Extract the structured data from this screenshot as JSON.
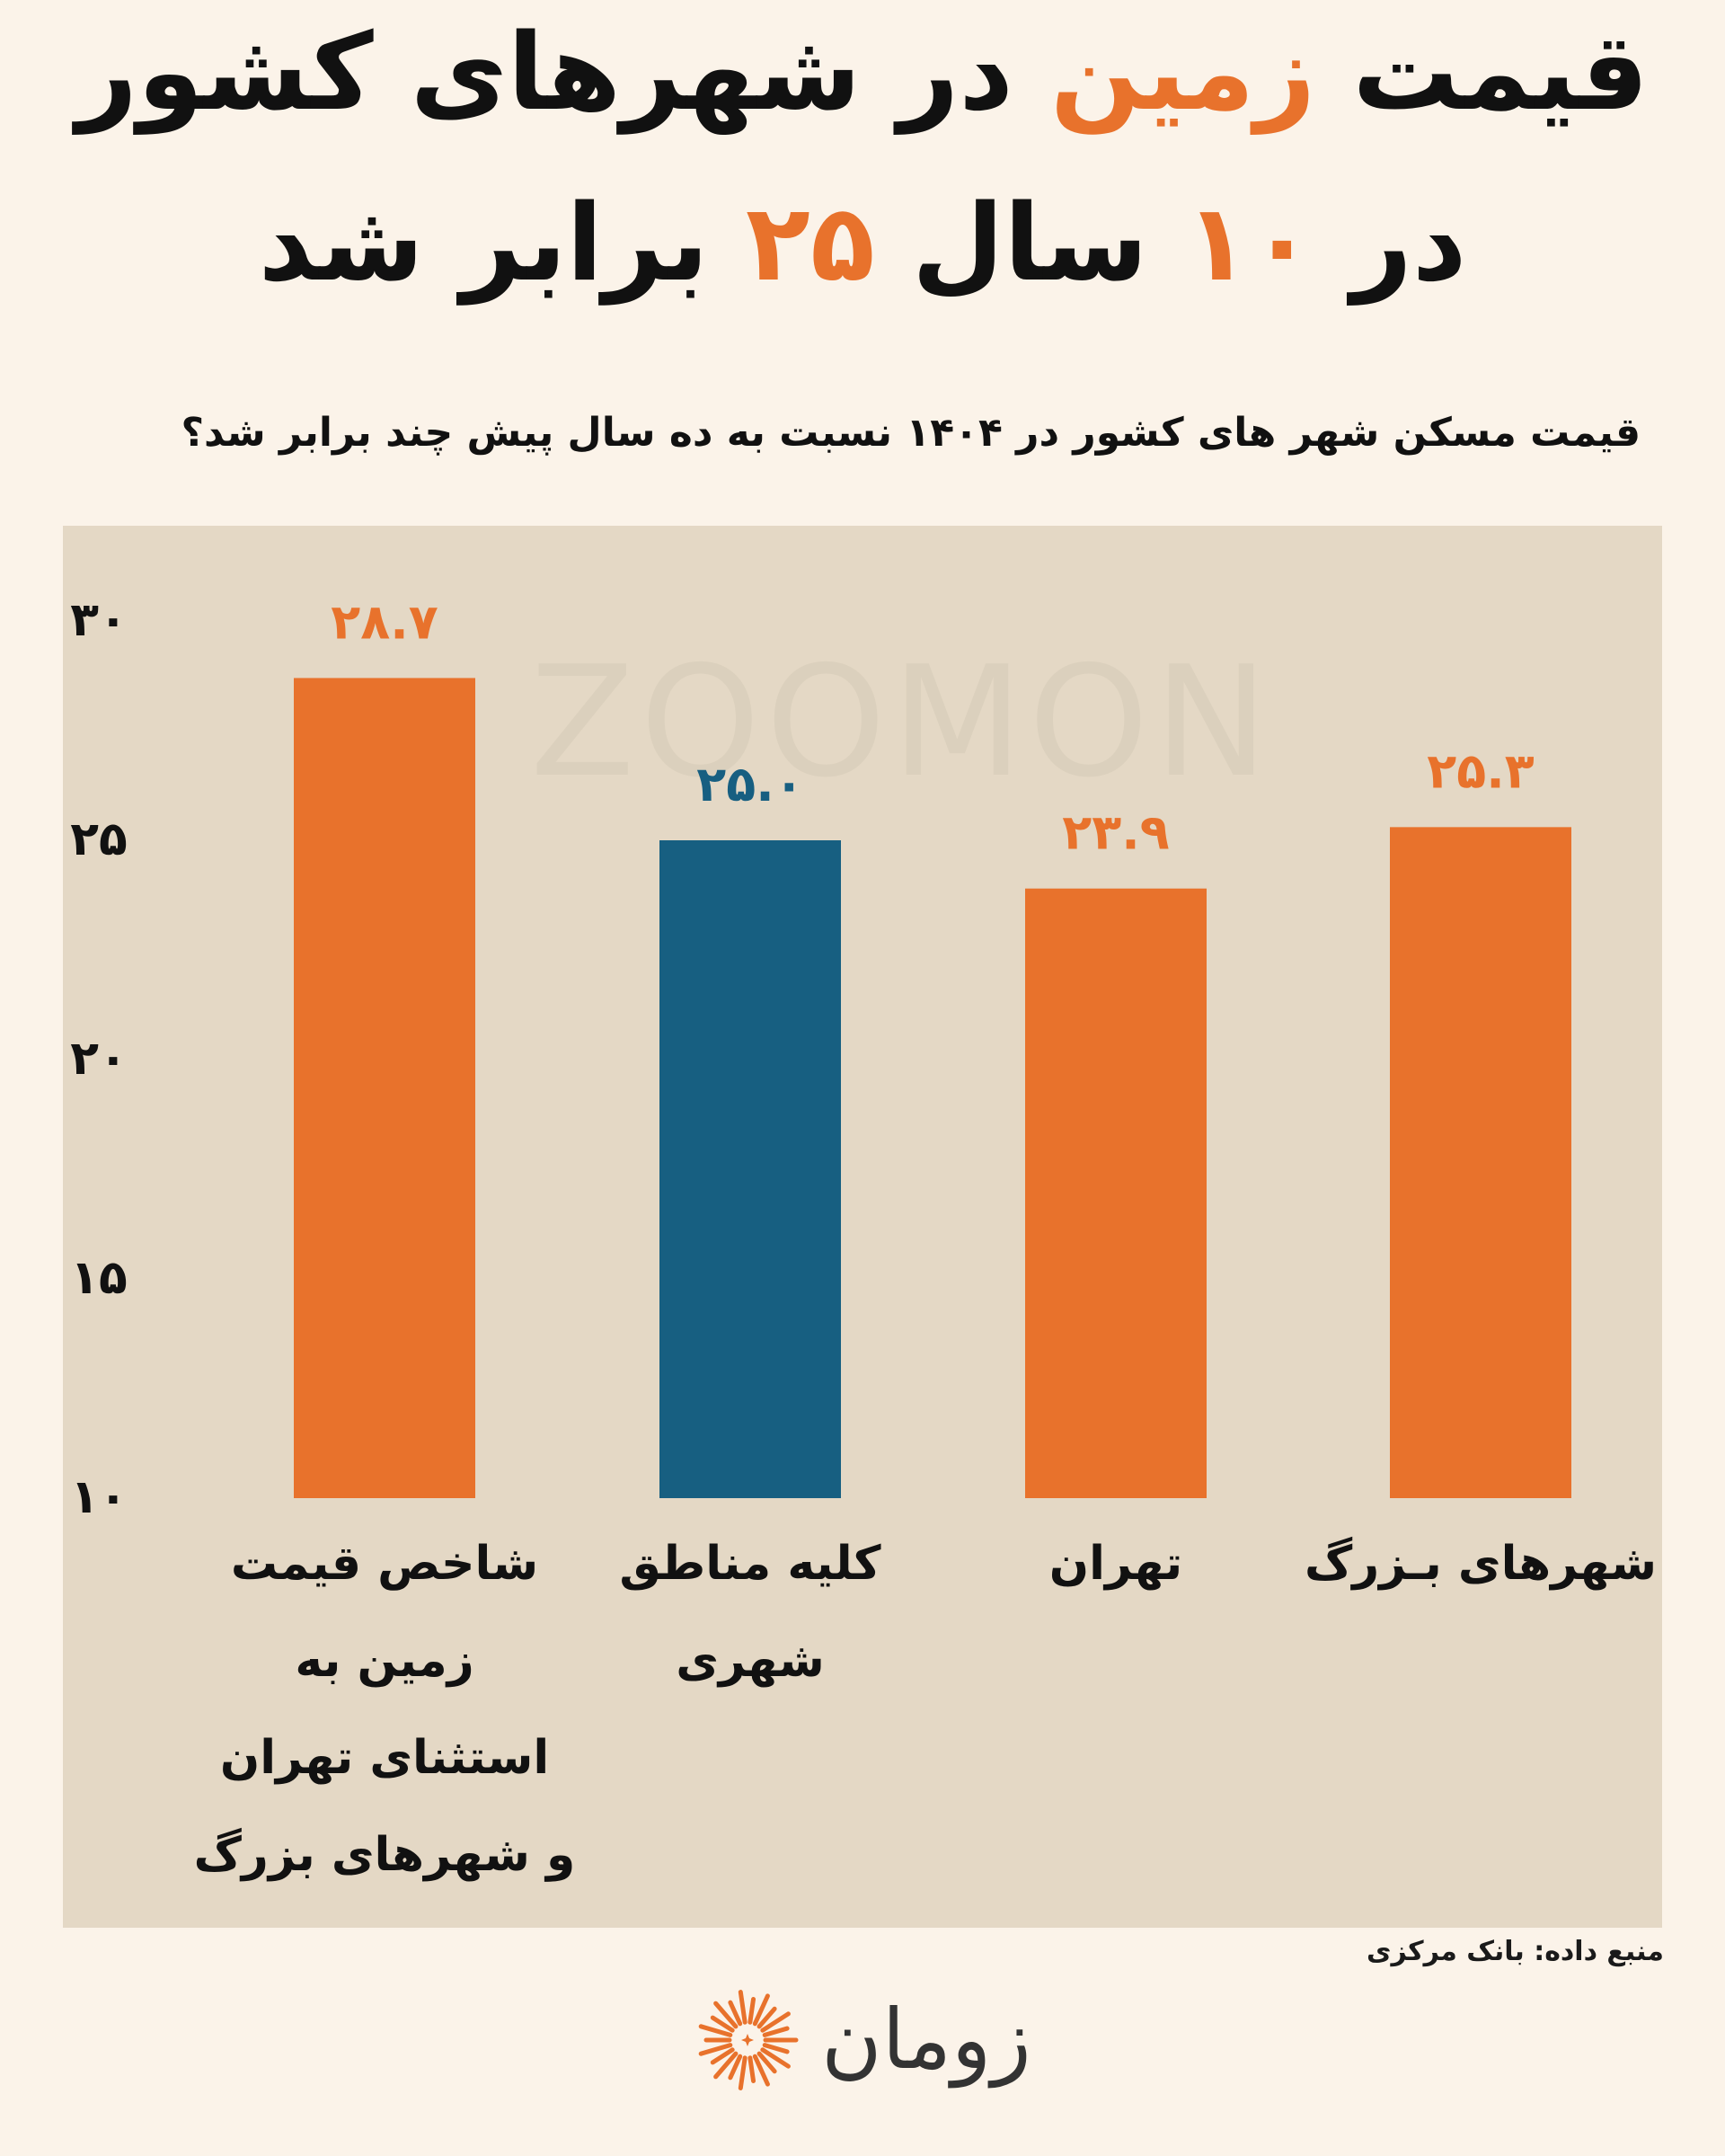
{
  "header": {
    "line1": {
      "part1": "قیمت",
      "accent": "زمین",
      "part2": "در شهرهای کشور"
    },
    "line2": {
      "part1": "در",
      "accent1": "۱۰",
      "part2": "سال",
      "accent2": "۲۵",
      "part3": "برابر شد"
    }
  },
  "subtitle": "قیمت مسکن شهر های کشور در ۱۴۰۴ نسبت به ده سال پیش چند برابر شد؟",
  "watermark": "ZOOMON",
  "source": "منبع داده: بانک مرکزی",
  "logo": {
    "text": "زومان",
    "icon": "sunburst-icon"
  },
  "colors": {
    "orange": "#e8722c",
    "blue": "#175f81",
    "panel": "#e4d8c5",
    "background": "#fbf3e9"
  },
  "chart_data": {
    "type": "bar",
    "orientation": "vertical",
    "categories": [
      [
        "شهرهای بـزرگ"
      ],
      [
        "تهران"
      ],
      [
        "کلیه مناطق",
        "شهری"
      ],
      [
        "شاخص قیمت",
        "زمین به",
        "استثنای تهران",
        "و شهرهای بزرگ"
      ]
    ],
    "values": [
      25.3,
      23.9,
      25.0,
      28.7
    ],
    "value_labels": [
      "۲۵.۳",
      "۲۳.۹",
      "۲۵.۰",
      "۲۸.۷"
    ],
    "bar_colors": [
      "#e8722c",
      "#e8722c",
      "#175f81",
      "#e8722c"
    ],
    "ylim": [
      10,
      30
    ],
    "yticks": [
      10,
      15,
      20,
      25,
      30
    ],
    "ytick_labels": [
      "۱۰",
      "۱۵",
      "۲۰",
      "۲۵",
      "۳۰"
    ],
    "grid": false,
    "legend": "none"
  }
}
